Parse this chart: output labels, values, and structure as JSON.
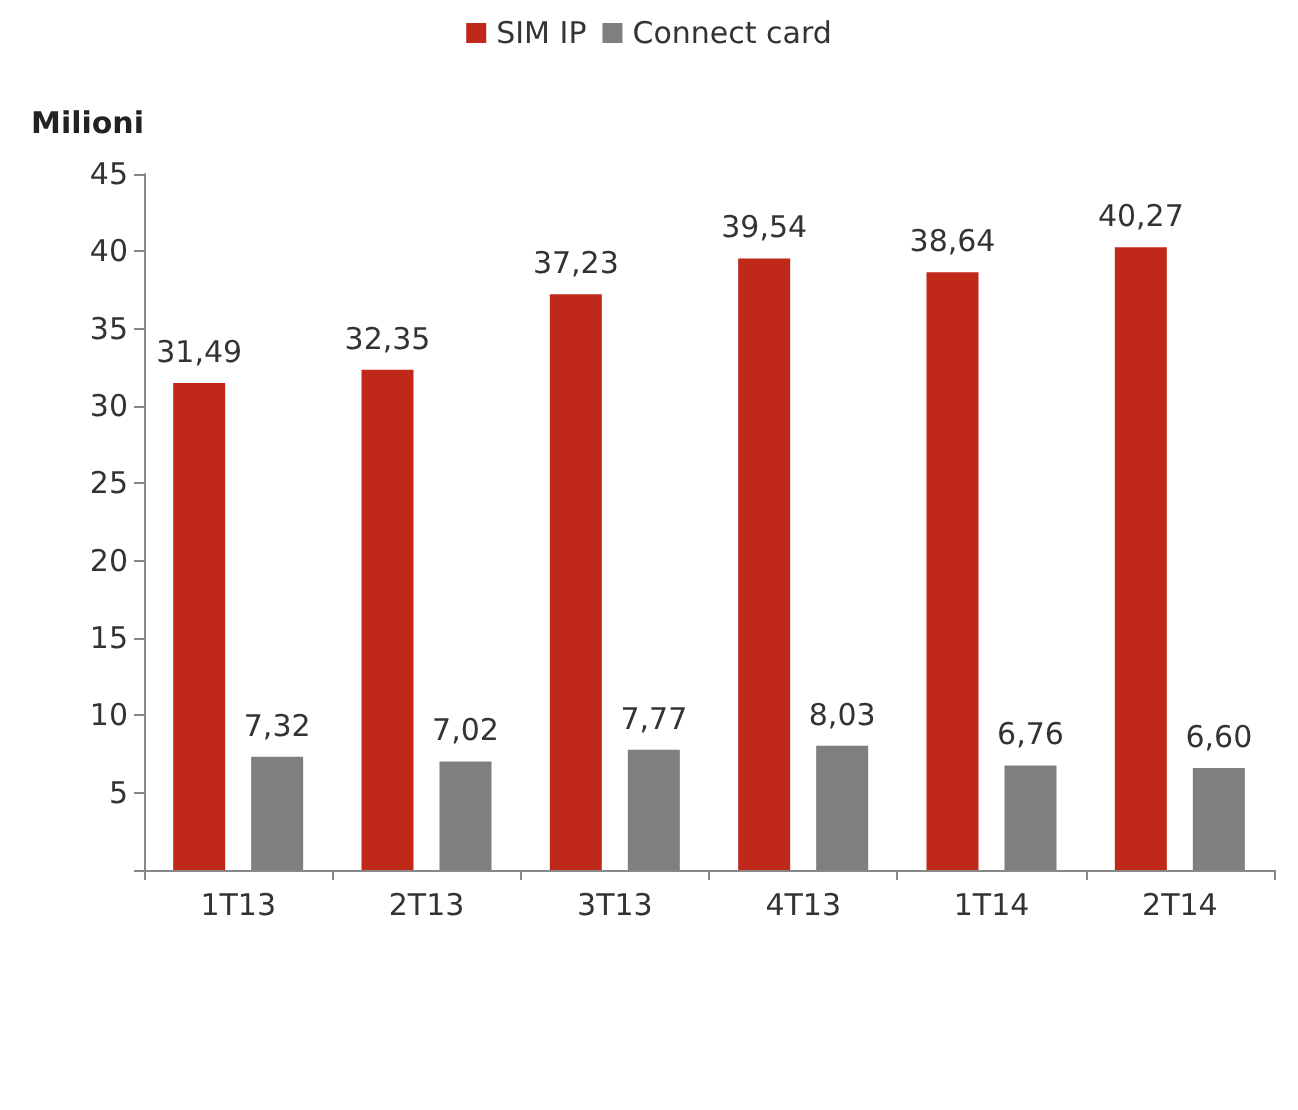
{
  "chart_data": {
    "type": "bar",
    "ylabel": "Milioni",
    "categories": [
      "1T13",
      "2T13",
      "3T13",
      "4T13",
      "1T14",
      "2T14"
    ],
    "series": [
      {
        "name": "SIM IP",
        "color": "#c0281a",
        "values": [
          31.49,
          32.35,
          37.23,
          39.54,
          38.64,
          40.27
        ],
        "value_labels": [
          "31,49",
          "32,35",
          "37,23",
          "39,54",
          "38,64",
          "40,27"
        ]
      },
      {
        "name": "Connect card",
        "color": "#7f7f7f",
        "values": [
          7.32,
          7.02,
          7.77,
          8.03,
          6.76,
          6.6
        ],
        "value_labels": [
          "7,32",
          "7,02",
          "7,77",
          "8,03",
          "6,76",
          "6,60"
        ]
      }
    ],
    "ylim": [
      0,
      45
    ],
    "yticks": [
      {
        "value": 0,
        "label": null
      },
      5,
      10,
      15,
      20,
      25,
      30,
      35,
      40,
      45
    ],
    "grid": false,
    "legend": "top"
  }
}
